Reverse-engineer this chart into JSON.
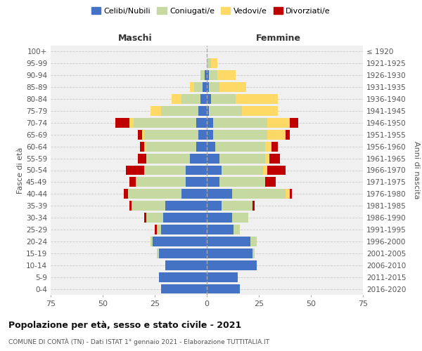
{
  "age_groups": [
    "100+",
    "95-99",
    "90-94",
    "85-89",
    "80-84",
    "75-79",
    "70-74",
    "65-69",
    "60-64",
    "55-59",
    "50-54",
    "45-49",
    "40-44",
    "35-39",
    "30-34",
    "25-29",
    "20-24",
    "15-19",
    "10-14",
    "5-9",
    "0-4"
  ],
  "birth_years": [
    "≤ 1920",
    "1921-1925",
    "1926-1930",
    "1931-1935",
    "1936-1940",
    "1941-1945",
    "1946-1950",
    "1951-1955",
    "1956-1960",
    "1961-1965",
    "1966-1970",
    "1971-1975",
    "1976-1980",
    "1981-1985",
    "1986-1990",
    "1991-1995",
    "1996-2000",
    "2001-2005",
    "2006-2010",
    "2011-2015",
    "2016-2020"
  ],
  "colors": {
    "celibe": "#4472C4",
    "coniugato": "#c5d9a0",
    "vedovo": "#FFD966",
    "divorziato": "#C00000"
  },
  "maschi": {
    "celibe": [
      0,
      0,
      1,
      2,
      3,
      4,
      5,
      4,
      5,
      8,
      10,
      10,
      12,
      20,
      21,
      22,
      26,
      23,
      20,
      23,
      22
    ],
    "coniugato": [
      0,
      0,
      2,
      4,
      9,
      18,
      30,
      26,
      24,
      21,
      20,
      24,
      26,
      16,
      8,
      2,
      1,
      1,
      0,
      0,
      0
    ],
    "vedovo": [
      0,
      0,
      0,
      2,
      5,
      5,
      2,
      1,
      1,
      0,
      0,
      0,
      0,
      0,
      0,
      0,
      0,
      0,
      0,
      0,
      0
    ],
    "divorziato": [
      0,
      0,
      0,
      0,
      0,
      0,
      7,
      2,
      2,
      4,
      9,
      3,
      2,
      1,
      1,
      1,
      0,
      0,
      0,
      0,
      0
    ]
  },
  "femmine": {
    "nubile": [
      0,
      0,
      1,
      1,
      2,
      1,
      3,
      3,
      4,
      6,
      7,
      6,
      12,
      7,
      12,
      13,
      21,
      22,
      24,
      15,
      16
    ],
    "coniugata": [
      0,
      2,
      4,
      5,
      12,
      16,
      26,
      26,
      24,
      22,
      20,
      22,
      26,
      15,
      8,
      3,
      3,
      1,
      0,
      0,
      0
    ],
    "vedova": [
      0,
      3,
      9,
      13,
      20,
      17,
      11,
      9,
      3,
      2,
      2,
      0,
      2,
      0,
      0,
      0,
      0,
      0,
      0,
      0,
      0
    ],
    "divorziata": [
      0,
      0,
      0,
      0,
      0,
      0,
      4,
      2,
      3,
      5,
      9,
      5,
      1,
      1,
      0,
      0,
      0,
      0,
      0,
      0,
      0
    ]
  },
  "xlim": 75,
  "title": "Popolazione per età, sesso e stato civile - 2021",
  "subtitle": "COMUNE DI CONTÀ (TN) - Dati ISTAT 1° gennaio 2021 - Elaborazione TUTTITALIA.IT",
  "ylabel_left": "Fasce di età",
  "ylabel_right": "Anni di nascita",
  "xlabel_maschi": "Maschi",
  "xlabel_femmine": "Femmine",
  "legend_labels": [
    "Celibi/Nubili",
    "Coniugati/e",
    "Vedovi/e",
    "Divorziati/e"
  ],
  "bg_color": "#ffffff",
  "grid_color": "#cccccc",
  "bar_height": 0.82
}
